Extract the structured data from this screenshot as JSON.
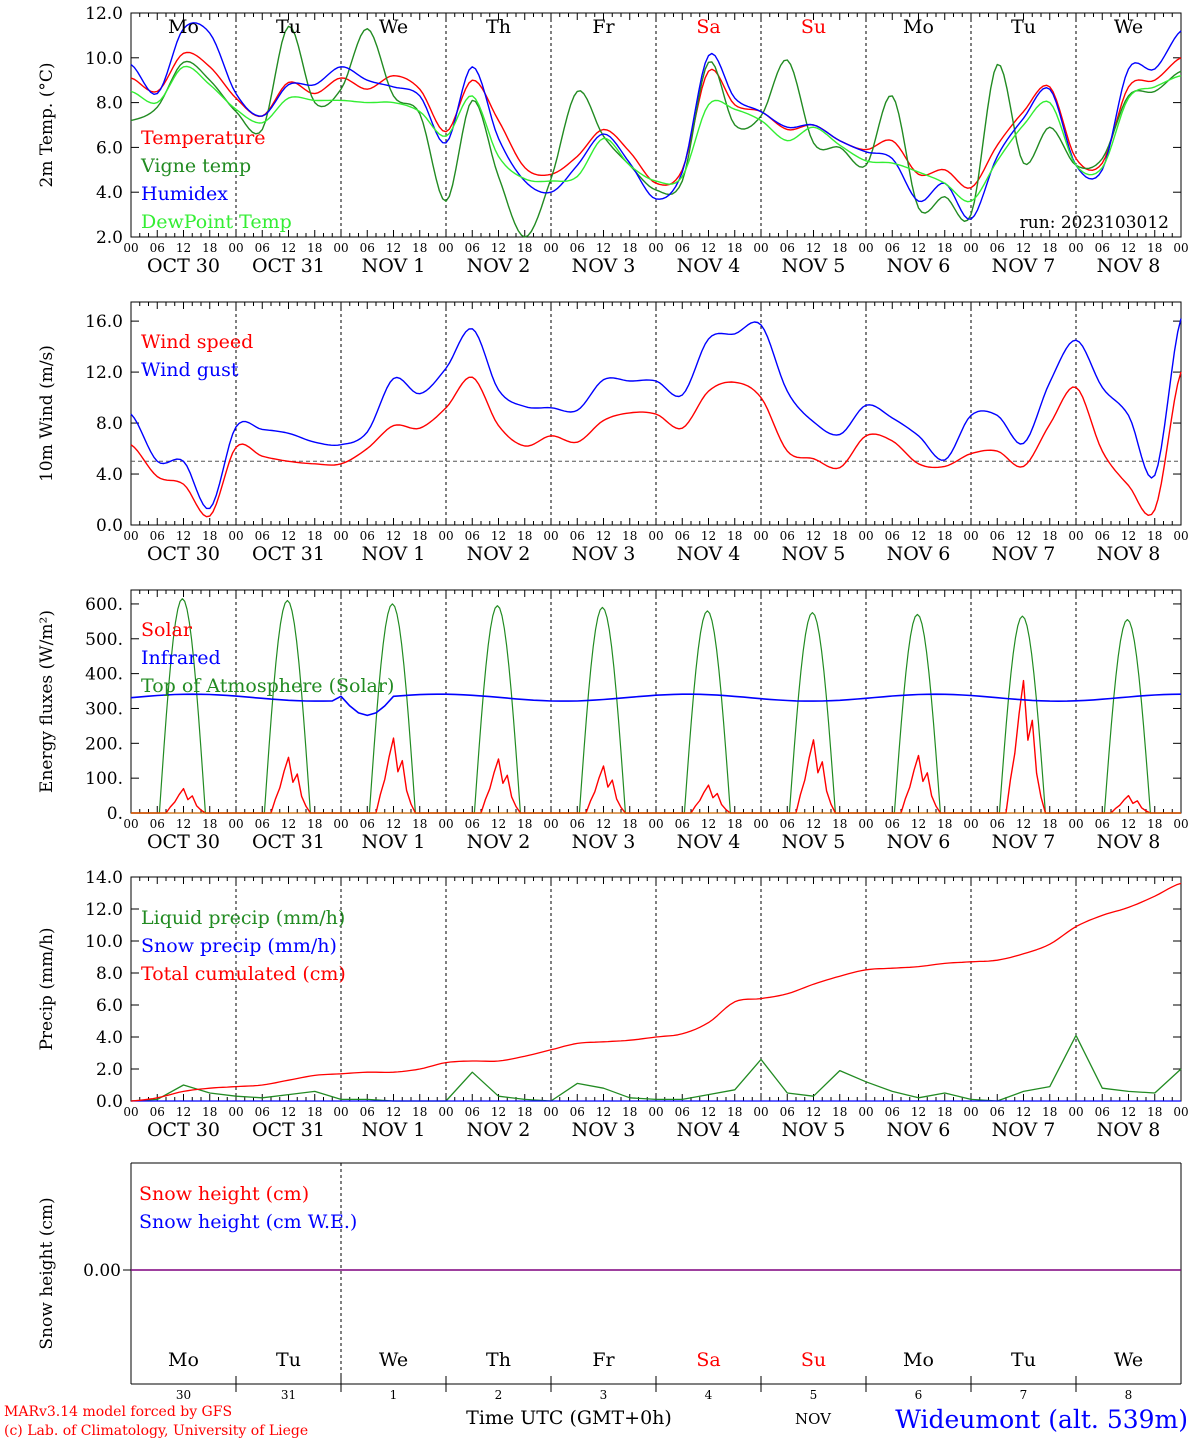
{
  "footer": {
    "model": "MARv3.14 model forced by GFS",
    "lab": "(c) Lab. of Climatology, University of Liege",
    "xlabel": "Time UTC (GMT+0h)",
    "station": "Wideumont (alt. 539m)",
    "month_label": "NOV"
  },
  "colors": {
    "red": "#ff0000",
    "green": "#228b22",
    "blue": "#0000ff",
    "lightgreen": "#33ee33",
    "purple": "#7f007f",
    "black": "#000000"
  },
  "days": {
    "weekday_labels": [
      "Mo",
      "Tu",
      "We",
      "Th",
      "Fr",
      "Sa",
      "Su",
      "Mo",
      "Tu",
      "We"
    ],
    "weekend_flags": [
      false,
      false,
      false,
      false,
      false,
      true,
      true,
      false,
      false,
      false
    ],
    "date_labels": [
      "OCT 30",
      "OCT 31",
      "NOV 1",
      "NOV 2",
      "NOV 3",
      "NOV 4",
      "NOV 5",
      "NOV 6",
      "NOV 7",
      "NOV 8"
    ],
    "day_numbers": [
      "30",
      "31",
      "1",
      "2",
      "3",
      "4",
      "5",
      "6",
      "7",
      "8"
    ],
    "hour_ticks": [
      "00",
      "06",
      "12",
      "18"
    ],
    "final_tick": "00"
  },
  "run_label": "run: 2023103012",
  "chart_data": [
    {
      "type": "line",
      "name": "temperature",
      "ylabel": "2m Temp. (°C)",
      "ylim": [
        2.0,
        12.0
      ],
      "yticks": [
        "2.0",
        "4.0",
        "6.0",
        "8.0",
        "10.0",
        "12.0"
      ],
      "x_hours": [
        0,
        6,
        12,
        18,
        24,
        30,
        36,
        42,
        48,
        54,
        60,
        66,
        72,
        78,
        84,
        90,
        96,
        102,
        108,
        114,
        120,
        126,
        132,
        138,
        144,
        150,
        156,
        162,
        168,
        174,
        180,
        186,
        192,
        198,
        204,
        210,
        216,
        222,
        228,
        234,
        240
      ],
      "series": [
        {
          "name": "Temperature",
          "color": "red",
          "values": [
            9.1,
            8.5,
            10.2,
            9.6,
            8.2,
            7.4,
            8.9,
            8.4,
            9.1,
            8.6,
            9.2,
            8.6,
            6.7,
            9.0,
            7.2,
            5.1,
            4.8,
            5.6,
            6.8,
            5.8,
            4.4,
            5.0,
            9.4,
            7.9,
            7.6,
            6.8,
            7.0,
            6.3,
            5.9,
            6.3,
            4.8,
            5.0,
            4.2,
            6.1,
            7.6,
            8.7,
            5.5,
            5.3,
            8.7,
            9.0,
            10.0
          ]
        },
        {
          "name": "Vigne temp",
          "color": "green",
          "values": [
            7.2,
            7.8,
            9.8,
            9.0,
            7.6,
            6.8,
            11.4,
            8.0,
            8.6,
            11.3,
            8.3,
            7.5,
            3.6,
            8.1,
            4.7,
            2.0,
            4.6,
            8.5,
            6.5,
            5.2,
            4.1,
            4.5,
            9.8,
            7.0,
            7.4,
            9.9,
            6.2,
            6.0,
            5.2,
            8.3,
            3.3,
            3.8,
            3.0,
            9.7,
            5.3,
            6.9,
            5.2,
            5.5,
            8.3,
            8.5,
            9.4
          ]
        },
        {
          "name": "Humidex",
          "color": "blue",
          "values": [
            9.7,
            8.4,
            11.3,
            11.1,
            8.4,
            7.4,
            8.8,
            8.8,
            9.6,
            9.0,
            8.7,
            8.3,
            6.2,
            9.6,
            6.4,
            4.5,
            4.0,
            5.2,
            6.6,
            5.3,
            3.7,
            4.9,
            10.1,
            8.2,
            7.6,
            6.9,
            7.0,
            6.3,
            5.8,
            5.5,
            3.6,
            4.4,
            2.8,
            5.6,
            7.3,
            8.6,
            5.2,
            5.0,
            9.5,
            9.5,
            11.2
          ]
        },
        {
          "name": "DewPoint Temp",
          "color": "lightgreen",
          "values": [
            8.5,
            8.0,
            9.6,
            8.8,
            7.7,
            7.1,
            8.2,
            8.1,
            8.1,
            8.0,
            8.0,
            7.6,
            6.5,
            8.3,
            5.6,
            4.6,
            4.5,
            4.7,
            6.4,
            5.2,
            4.5,
            4.7,
            7.9,
            7.7,
            7.2,
            6.3,
            6.9,
            6.1,
            5.4,
            5.3,
            4.9,
            4.4,
            3.6,
            5.4,
            7.0,
            8.0,
            5.2,
            5.1,
            8.2,
            8.7,
            9.2
          ]
        }
      ]
    },
    {
      "type": "line",
      "name": "wind",
      "ylabel": "10m Wind (m/s)",
      "ylim": [
        0.0,
        17.5
      ],
      "yticks": [
        "0.0",
        "4.0",
        "8.0",
        "12.0",
        "16.0"
      ],
      "threshold": 5.0,
      "x_hours": [
        0,
        6,
        12,
        18,
        24,
        30,
        36,
        42,
        48,
        54,
        60,
        66,
        72,
        78,
        84,
        90,
        96,
        102,
        108,
        114,
        120,
        126,
        132,
        138,
        144,
        150,
        156,
        162,
        168,
        174,
        180,
        186,
        192,
        198,
        204,
        210,
        216,
        222,
        228,
        234,
        240
      ],
      "series": [
        {
          "name": "Wind speed",
          "color": "red",
          "values": [
            6.3,
            3.8,
            3.2,
            0.7,
            6.1,
            5.4,
            5.0,
            4.8,
            4.8,
            6.0,
            7.8,
            7.6,
            9.2,
            11.6,
            7.8,
            6.2,
            7.0,
            6.5,
            8.2,
            8.8,
            8.7,
            7.6,
            10.5,
            11.2,
            10.0,
            5.8,
            5.2,
            4.5,
            7.0,
            6.6,
            4.8,
            4.6,
            5.6,
            5.8,
            4.6,
            7.9,
            10.8,
            5.8,
            3.1,
            1.2,
            12.0
          ]
        },
        {
          "name": "Wind gust",
          "color": "blue",
          "values": [
            8.7,
            5.0,
            5.0,
            1.3,
            7.7,
            7.5,
            7.2,
            6.5,
            6.3,
            7.3,
            11.5,
            10.3,
            12.3,
            15.4,
            10.6,
            9.3,
            9.2,
            9.0,
            11.4,
            11.3,
            11.3,
            10.2,
            14.6,
            15.0,
            15.7,
            10.5,
            8.1,
            7.1,
            9.4,
            8.4,
            7.0,
            5.1,
            8.6,
            8.6,
            6.4,
            11.2,
            14.5,
            10.8,
            8.6,
            3.9,
            16.2
          ]
        }
      ]
    },
    {
      "type": "line",
      "name": "energy",
      "ylabel": "Energy fluxes (W/m²)",
      "ylim": [
        0,
        640
      ],
      "yticks": [
        "0.",
        "100.",
        "200.",
        "300.",
        "400.",
        "500.",
        "600."
      ],
      "series": [
        {
          "name": "Solar",
          "color": "red",
          "day_peaks": [
            70,
            160,
            215,
            155,
            135,
            80,
            210,
            165,
            380,
            50
          ]
        },
        {
          "name": "Infrared",
          "color": "blue",
          "baseline": 335
        },
        {
          "name": "Top of Atmosphere (Solar)",
          "color": "green",
          "day_peaks": [
            615,
            610,
            600,
            595,
            590,
            580,
            575,
            570,
            565,
            555
          ]
        }
      ]
    },
    {
      "type": "line",
      "name": "precip",
      "ylabel": "Precip (mm/h)",
      "ylim": [
        0.0,
        14.0
      ],
      "yticks": [
        "0.0",
        "2.0",
        "4.0",
        "6.0",
        "8.0",
        "10.0",
        "12.0",
        "14.0"
      ],
      "x_hours": [
        0,
        6,
        12,
        18,
        24,
        30,
        36,
        42,
        48,
        54,
        60,
        66,
        72,
        78,
        84,
        90,
        96,
        102,
        108,
        114,
        120,
        126,
        132,
        138,
        144,
        150,
        156,
        162,
        168,
        174,
        180,
        186,
        192,
        198,
        204,
        210,
        216,
        222,
        228,
        234,
        240
      ],
      "series": [
        {
          "name": "Liquid precip (mm/h)",
          "color": "green",
          "values": [
            0.0,
            0.1,
            1.0,
            0.5,
            0.3,
            0.2,
            0.4,
            0.6,
            0.1,
            0.1,
            0.0,
            0.0,
            0.0,
            1.8,
            0.3,
            0.1,
            0.0,
            1.1,
            0.8,
            0.2,
            0.1,
            0.1,
            0.4,
            0.7,
            2.6,
            0.5,
            0.3,
            1.9,
            1.2,
            0.6,
            0.2,
            0.5,
            0.1,
            0.0,
            0.6,
            0.9,
            4.1,
            0.8,
            0.6,
            0.5,
            2.0
          ]
        },
        {
          "name": "Snow precip (mm/h)",
          "color": "blue",
          "values": [
            0,
            0,
            0,
            0,
            0,
            0,
            0,
            0,
            0,
            0,
            0,
            0,
            0,
            0,
            0,
            0,
            0,
            0,
            0,
            0,
            0,
            0,
            0,
            0,
            0,
            0,
            0,
            0,
            0,
            0,
            0,
            0,
            0,
            0,
            0,
            0,
            0,
            0,
            0,
            0,
            0
          ]
        },
        {
          "name": "Total cumulated (cm)",
          "color": "red",
          "values": [
            0.0,
            0.2,
            0.6,
            0.8,
            0.9,
            1.0,
            1.3,
            1.6,
            1.7,
            1.8,
            1.8,
            2.0,
            2.4,
            2.5,
            2.5,
            2.8,
            3.2,
            3.6,
            3.7,
            3.8,
            4.0,
            4.2,
            4.9,
            6.2,
            6.4,
            6.7,
            7.3,
            7.8,
            8.2,
            8.3,
            8.4,
            8.6,
            8.7,
            8.8,
            9.2,
            9.8,
            10.9,
            11.6,
            12.1,
            12.8,
            13.6
          ]
        }
      ]
    },
    {
      "type": "line",
      "name": "snow",
      "ylabel": "Snow height (cm)",
      "yticks": [
        "0.00"
      ],
      "series": [
        {
          "name": "Snow height (cm)",
          "color": "red",
          "values": [
            0.0,
            0.0
          ]
        },
        {
          "name": "Snow height (cm W.E.)",
          "color": "blue",
          "values": [
            0.0,
            0.0
          ]
        }
      ]
    }
  ]
}
